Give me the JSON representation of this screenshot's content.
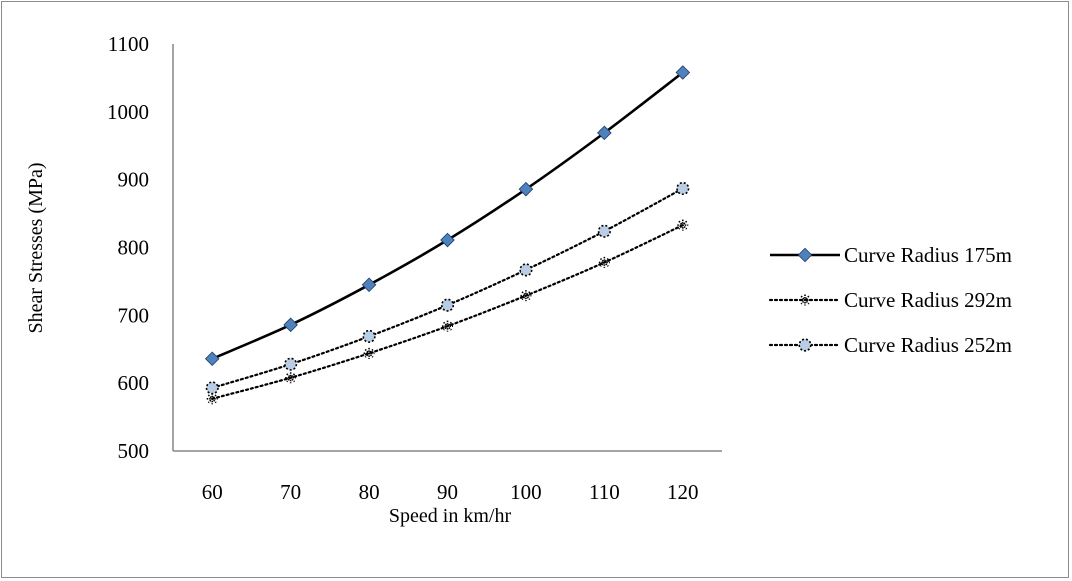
{
  "chart_data": {
    "type": "line",
    "title": "",
    "xlabel": "Speed in km/hr",
    "ylabel": "Shear Stresses (MPa)",
    "categories": [
      "60",
      "70",
      "80",
      "90",
      "100",
      "110",
      "120"
    ],
    "ylim": [
      500,
      1100
    ],
    "yticks": [
      "500",
      "600",
      "700",
      "800",
      "900",
      "1000",
      "1100"
    ],
    "grid": false,
    "legend_position": "right",
    "series": [
      {
        "name": "Curve Radius 175m",
        "values": [
          636,
          686,
          745,
          811,
          886,
          969,
          1058
        ],
        "line_style": "solid",
        "line_color": "#000000",
        "marker": "diamond",
        "marker_color": "#4f81bd"
      },
      {
        "name": "Curve Radius 292m",
        "values": [
          577,
          608,
          644,
          684,
          729,
          778,
          833
        ],
        "line_style": "dotted",
        "line_color": "#000000",
        "marker": "star",
        "marker_color": "#000000"
      },
      {
        "name": "Curve Radius 252m",
        "values": [
          593,
          628,
          669,
          715,
          767,
          824,
          887
        ],
        "line_style": "dotted",
        "line_color": "#000000",
        "marker": "circle",
        "marker_color": "#b9cde5"
      }
    ]
  }
}
